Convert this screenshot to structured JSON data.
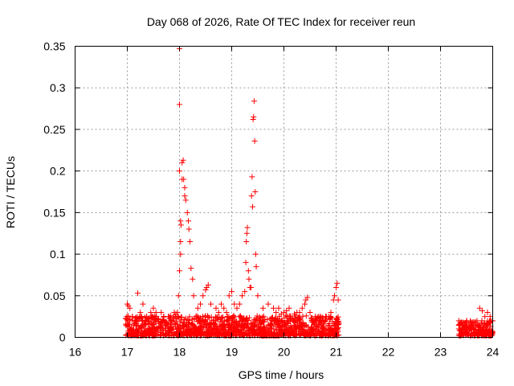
{
  "chart_data": {
    "type": "scatter",
    "title": "Day 068 of 2026, Rate Of TEC Index for receiver reun",
    "xlabel": "GPS time / hours",
    "ylabel": "ROTI / TECUs",
    "xlim": [
      16,
      24
    ],
    "ylim": [
      0,
      0.35
    ],
    "x_ticks": [
      16,
      17,
      18,
      19,
      20,
      21,
      22,
      23,
      24
    ],
    "x_tick_labels": [
      "16",
      "17",
      "18",
      "19",
      "20",
      "21",
      "22",
      "23",
      "24"
    ],
    "y_ticks": [
      0,
      0.05,
      0.1,
      0.15,
      0.2,
      0.25,
      0.3,
      0.35
    ],
    "y_tick_labels": [
      "0",
      "0.05",
      "0.1",
      "0.15",
      "0.2",
      "0.25",
      "0.3",
      "0.35"
    ],
    "grid": true,
    "marker": "+",
    "marker_color": "#ff0000",
    "series": [
      {
        "name": "ROTI",
        "points": [
          [
            17.0,
            0.04
          ],
          [
            17.02,
            0.038
          ],
          [
            17.05,
            0.035
          ],
          [
            17.1,
            0.025
          ],
          [
            17.15,
            0.02
          ],
          [
            17.2,
            0.053
          ],
          [
            17.25,
            0.03
          ],
          [
            17.3,
            0.04
          ],
          [
            17.35,
            0.02
          ],
          [
            17.45,
            0.03
          ],
          [
            17.5,
            0.035
          ],
          [
            17.55,
            0.03
          ],
          [
            17.6,
            0.022
          ],
          [
            17.65,
            0.03
          ],
          [
            17.7,
            0.02
          ],
          [
            17.8,
            0.025
          ],
          [
            17.85,
            0.02
          ],
          [
            17.9,
            0.03
          ],
          [
            17.93,
            0.028
          ],
          [
            17.96,
            0.03
          ],
          [
            17.98,
            0.05
          ],
          [
            18.0,
            0.08
          ],
          [
            18.0,
            0.2
          ],
          [
            18.0,
            0.28
          ],
          [
            18.0,
            0.347
          ],
          [
            18.02,
            0.115
          ],
          [
            18.02,
            0.1
          ],
          [
            18.02,
            0.14
          ],
          [
            18.03,
            0.135
          ],
          [
            18.05,
            0.21
          ],
          [
            18.05,
            0.19
          ],
          [
            18.07,
            0.213
          ],
          [
            18.08,
            0.19
          ],
          [
            18.1,
            0.18
          ],
          [
            18.1,
            0.17
          ],
          [
            18.12,
            0.165
          ],
          [
            18.15,
            0.15
          ],
          [
            18.17,
            0.14
          ],
          [
            18.18,
            0.13
          ],
          [
            18.2,
            0.115
          ],
          [
            18.22,
            0.083
          ],
          [
            18.25,
            0.07
          ],
          [
            18.27,
            0.05
          ],
          [
            18.35,
            0.035
          ],
          [
            18.4,
            0.04
          ],
          [
            18.45,
            0.05
          ],
          [
            18.5,
            0.057
          ],
          [
            18.52,
            0.06
          ],
          [
            18.55,
            0.063
          ],
          [
            18.6,
            0.04
          ],
          [
            18.7,
            0.035
          ],
          [
            18.75,
            0.03
          ],
          [
            18.8,
            0.04
          ],
          [
            18.85,
            0.035
          ],
          [
            18.9,
            0.03
          ],
          [
            18.95,
            0.05
          ],
          [
            19.0,
            0.055
          ],
          [
            19.05,
            0.04
          ],
          [
            19.1,
            0.035
          ],
          [
            19.15,
            0.04
          ],
          [
            19.2,
            0.05
          ],
          [
            19.25,
            0.055
          ],
          [
            19.27,
            0.09
          ],
          [
            19.28,
            0.115
          ],
          [
            19.29,
            0.125
          ],
          [
            19.3,
            0.132
          ],
          [
            19.32,
            0.08
          ],
          [
            19.33,
            0.07
          ],
          [
            19.35,
            0.06
          ],
          [
            19.37,
            0.06
          ],
          [
            19.38,
            0.17
          ],
          [
            19.39,
            0.193
          ],
          [
            19.4,
            0.157
          ],
          [
            19.41,
            0.262
          ],
          [
            19.42,
            0.265
          ],
          [
            19.43,
            0.284
          ],
          [
            19.44,
            0.236
          ],
          [
            19.45,
            0.175
          ],
          [
            19.46,
            0.1
          ],
          [
            19.47,
            0.085
          ],
          [
            19.5,
            0.05
          ],
          [
            19.6,
            0.035
          ],
          [
            19.7,
            0.04
          ],
          [
            19.8,
            0.035
          ],
          [
            19.85,
            0.03
          ],
          [
            19.9,
            0.035
          ],
          [
            19.95,
            0.028
          ],
          [
            20.0,
            0.03
          ],
          [
            20.05,
            0.032
          ],
          [
            20.1,
            0.035
          ],
          [
            20.2,
            0.028
          ],
          [
            20.25,
            0.03
          ],
          [
            20.3,
            0.03
          ],
          [
            20.35,
            0.035
          ],
          [
            20.4,
            0.04
          ],
          [
            20.42,
            0.045
          ],
          [
            20.45,
            0.048
          ],
          [
            20.5,
            0.03
          ],
          [
            20.6,
            0.025
          ],
          [
            20.7,
            0.025
          ],
          [
            20.8,
            0.025
          ],
          [
            20.9,
            0.03
          ],
          [
            20.95,
            0.045
          ],
          [
            20.97,
            0.05
          ],
          [
            21.0,
            0.06
          ],
          [
            21.02,
            0.065
          ],
          [
            21.04,
            0.045
          ],
          [
            23.35,
            0.02
          ],
          [
            23.4,
            0.018
          ],
          [
            23.5,
            0.02
          ],
          [
            23.6,
            0.015
          ],
          [
            23.7,
            0.02
          ],
          [
            23.75,
            0.035
          ],
          [
            23.8,
            0.032
          ],
          [
            23.85,
            0.025
          ],
          [
            23.9,
            0.03
          ],
          [
            23.95,
            0.025
          ],
          [
            24.0,
            0.02
          ]
        ]
      }
    ],
    "dense_ranges": [
      {
        "x": [
          16.97,
          21.06
        ],
        "y": [
          0.002,
          0.026
        ]
      },
      {
        "x": [
          23.35,
          24.0
        ],
        "y": [
          0.002,
          0.02
        ]
      }
    ]
  }
}
